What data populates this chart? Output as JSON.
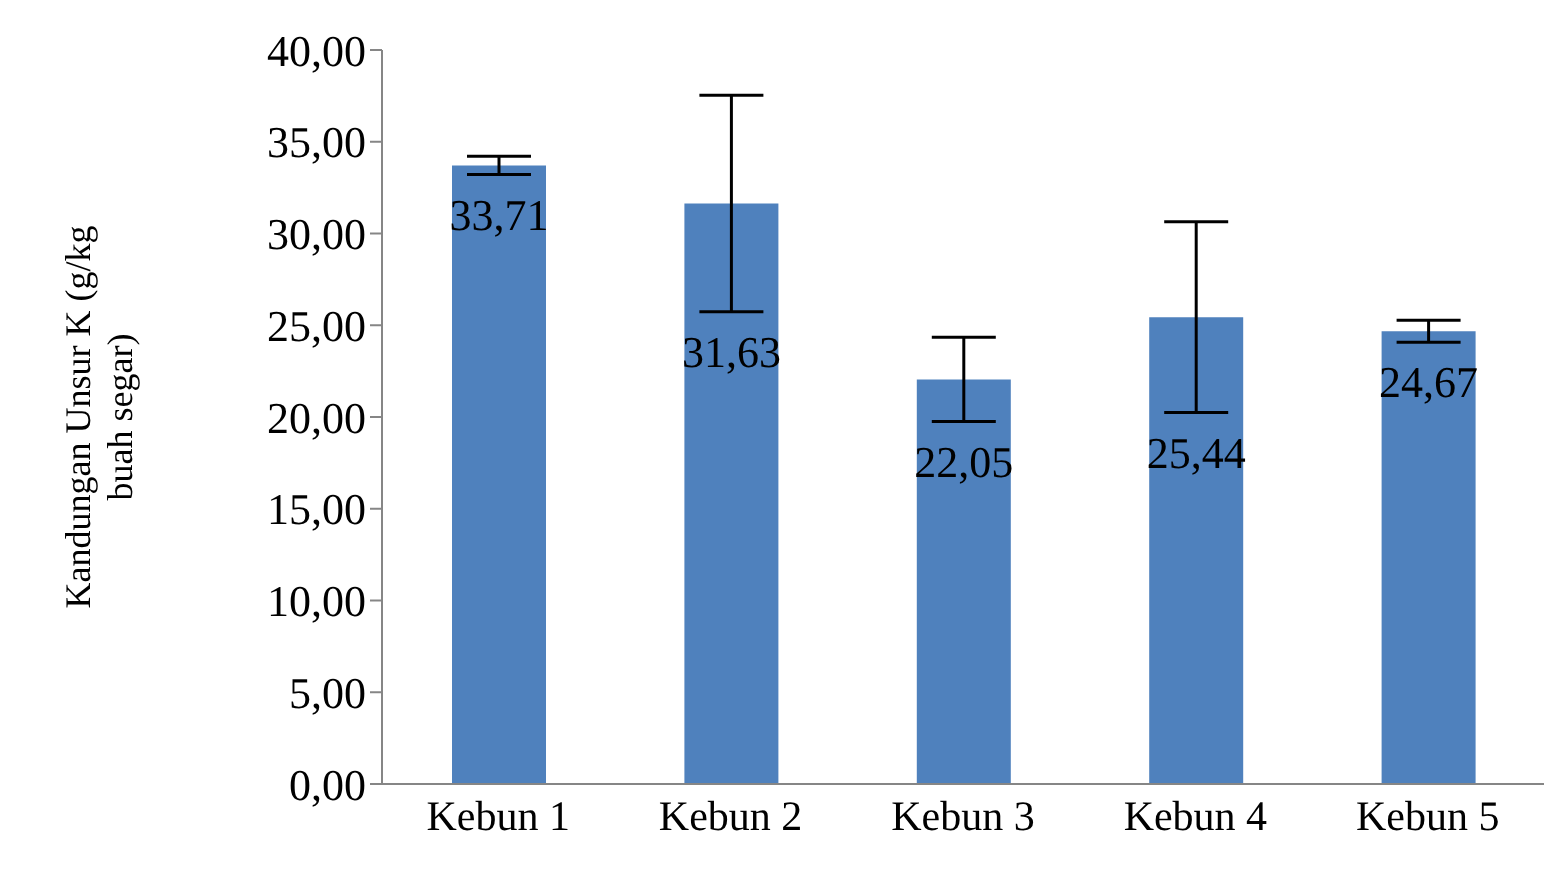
{
  "chart_data": {
    "type": "bar",
    "ylabel": "Kandungan Unsur K (g/kg buah segar)",
    "categories": [
      "Kebun 1",
      "Kebun 2",
      "Kebun 3",
      "Kebun 4",
      "Kebun 5"
    ],
    "values": [
      33.71,
      31.63,
      22.05,
      25.44,
      24.67
    ],
    "errors": [
      0.5,
      5.9,
      2.3,
      5.2,
      0.6
    ],
    "value_labels": [
      "33,71",
      "31,63",
      "22,05",
      "25,44",
      "24,67"
    ],
    "color": "#4f81bd",
    "ylim": [
      0,
      40
    ],
    "yticks": [
      {
        "value": 0,
        "label": "0,00"
      },
      {
        "value": 5,
        "label": "5,00"
      },
      {
        "value": 10,
        "label": "10,00"
      },
      {
        "value": 15,
        "label": "15,00"
      },
      {
        "value": 20,
        "label": "20,00"
      },
      {
        "value": 25,
        "label": "25,00"
      },
      {
        "value": 30,
        "label": "30,00"
      },
      {
        "value": 35,
        "label": "35,00"
      },
      {
        "value": 40,
        "label": "40,00"
      }
    ],
    "grid": false,
    "legend": false
  }
}
